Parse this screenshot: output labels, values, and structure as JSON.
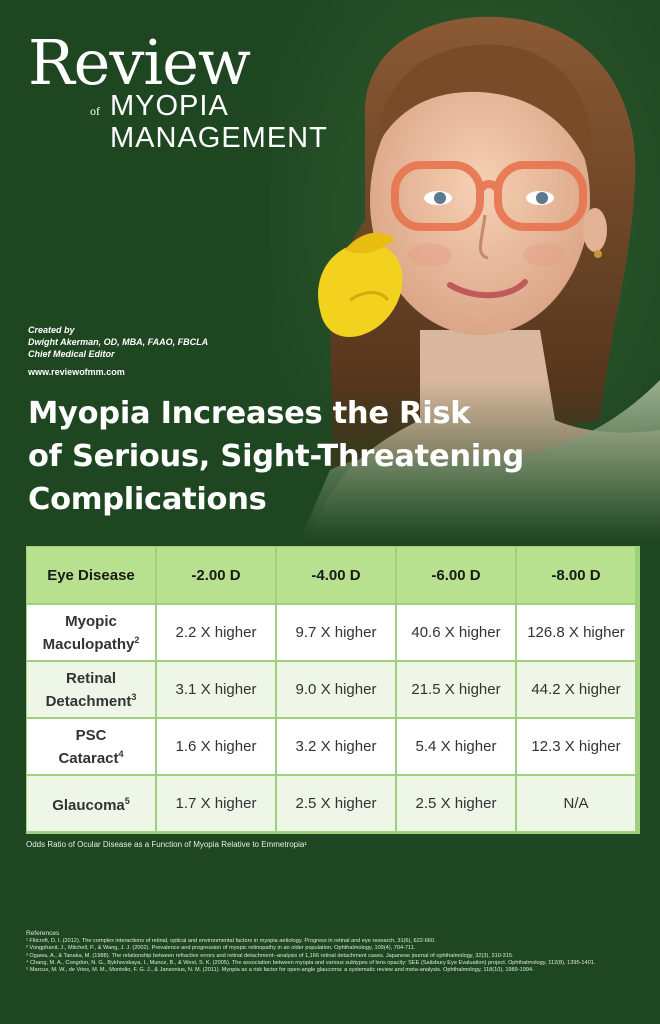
{
  "brand": {
    "review": "Review",
    "of": "of",
    "myopia": "MYOPIA",
    "management": "MANAGEMENT"
  },
  "credits": {
    "created_by": "Created by",
    "author": "Dwight Akerman, OD, MBA, FAAO, FBCLA",
    "role": "Chief Medical Editor",
    "url": "www.reviewofmm.com"
  },
  "headline": {
    "line1": "Myopia Increases the Risk",
    "line2": "of Serious, Sight-Threatening",
    "line3": "Complications"
  },
  "table": {
    "headers": [
      "Eye Disease",
      "-2.00 D",
      "-4.00 D",
      "-6.00 D",
      "-8.00 D"
    ],
    "rows": [
      {
        "label1": "Myopic",
        "label2": "Maculopathy",
        "sup": "2",
        "values": [
          "2.2 X higher",
          "9.7 X higher",
          "40.6 X higher",
          "126.8 X higher"
        ]
      },
      {
        "label1": "Retinal",
        "label2": "Detachment",
        "sup": "3",
        "values": [
          "3.1 X higher",
          "9.0 X higher",
          "21.5 X higher",
          "44.2 X higher"
        ]
      },
      {
        "label1": "PSC",
        "label2": "Cataract",
        "sup": "4",
        "values": [
          "1.6 X higher",
          "3.2 X higher",
          "5.4 X higher",
          "12.3 X higher"
        ]
      },
      {
        "label1": "",
        "label2": "Glaucoma",
        "sup": "5",
        "values": [
          "1.7 X higher",
          "2.5 X higher",
          "2.5 X higher",
          "N/A"
        ]
      }
    ],
    "caption": "Odds Ratio of Ocular Disease as a Function of Myopia Relative to Emmetropia¹"
  },
  "references": {
    "title": "References",
    "items": [
      "¹ Flitcroft, D. I. (2012). The complex interactions of retinal, optical and environmental factors in myopia aetiology. Progress in retinal and eye research, 31(6), 622-660.",
      "² Vongphanit, J., Mitchell, P., & Wang, J. J. (2002). Prevalence and progression of myopic retinopathy in an older population. Ophthalmology, 109(4), 704-711.",
      "³ Ogawa, A., & Tanaka, M. (1988). The relationship between refractive errors and retinal detachment--analysis of 1,166 retinal detachment cases. Japanese journal of ophthalmology, 32(3), 310-315.",
      "⁴ Chang, M. A., Congdon, N. G., Bykhovskaya, I., Munoz, B., & West, S. K. (2005). The association between myopia and various subtypes of lens opacity: SEE (Salisbury Eye Evaluation) project. Ophthalmology, 112(8), 1395-1401.",
      "⁵ Marcus, M. W., de Vries, M. M., Montolio, F. G. J., & Jansonius, N. M. (2011). Myopia as a risk factor for open-angle glaucoma: a systematic review and meta-analysis. Ophthalmology, 118(10), 1989-1994."
    ]
  },
  "colors": {
    "background": "#1e4621",
    "table_header": "#b7e18e",
    "table_border": "#9ed07e",
    "glasses": "#e8744f",
    "flower": "#f3d21f"
  }
}
